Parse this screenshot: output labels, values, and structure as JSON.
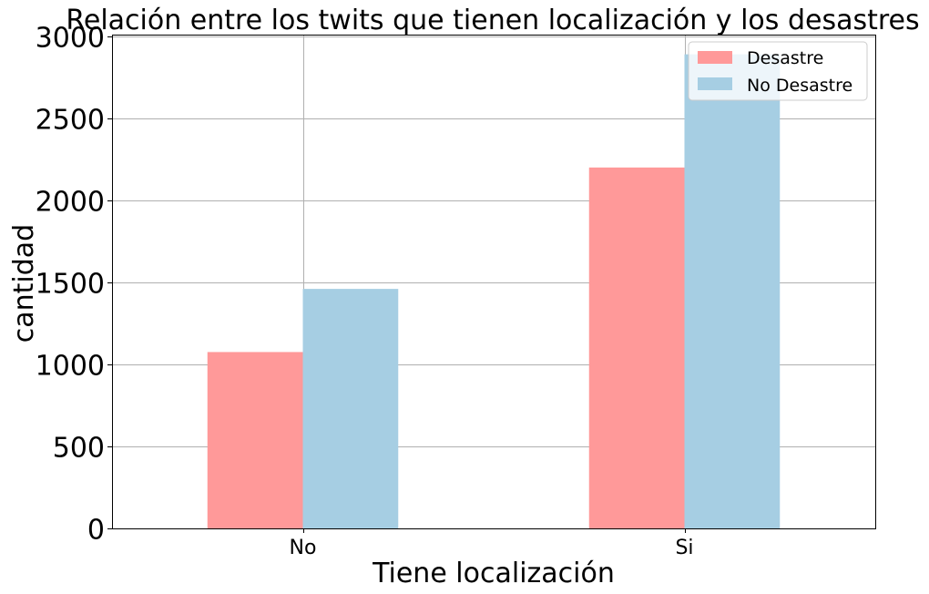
{
  "chart_data": {
    "type": "bar",
    "title": "Relación entre los twits que tienen localización y los desastres",
    "xlabel": "Tiene localización",
    "ylabel": "cantidad",
    "categories": [
      "No",
      "Si"
    ],
    "series": [
      {
        "name": "Desastre",
        "values": [
          1075,
          2200
        ],
        "color": "#ff9999"
      },
      {
        "name": "No Desastre",
        "values": [
          1460,
          2890
        ],
        "color": "#a6cee3"
      }
    ],
    "ylim": [
      0,
      3010
    ],
    "yticks": [
      0,
      500,
      1000,
      1500,
      2000,
      2500,
      3000
    ],
    "grid": true,
    "legend": "top-right"
  }
}
